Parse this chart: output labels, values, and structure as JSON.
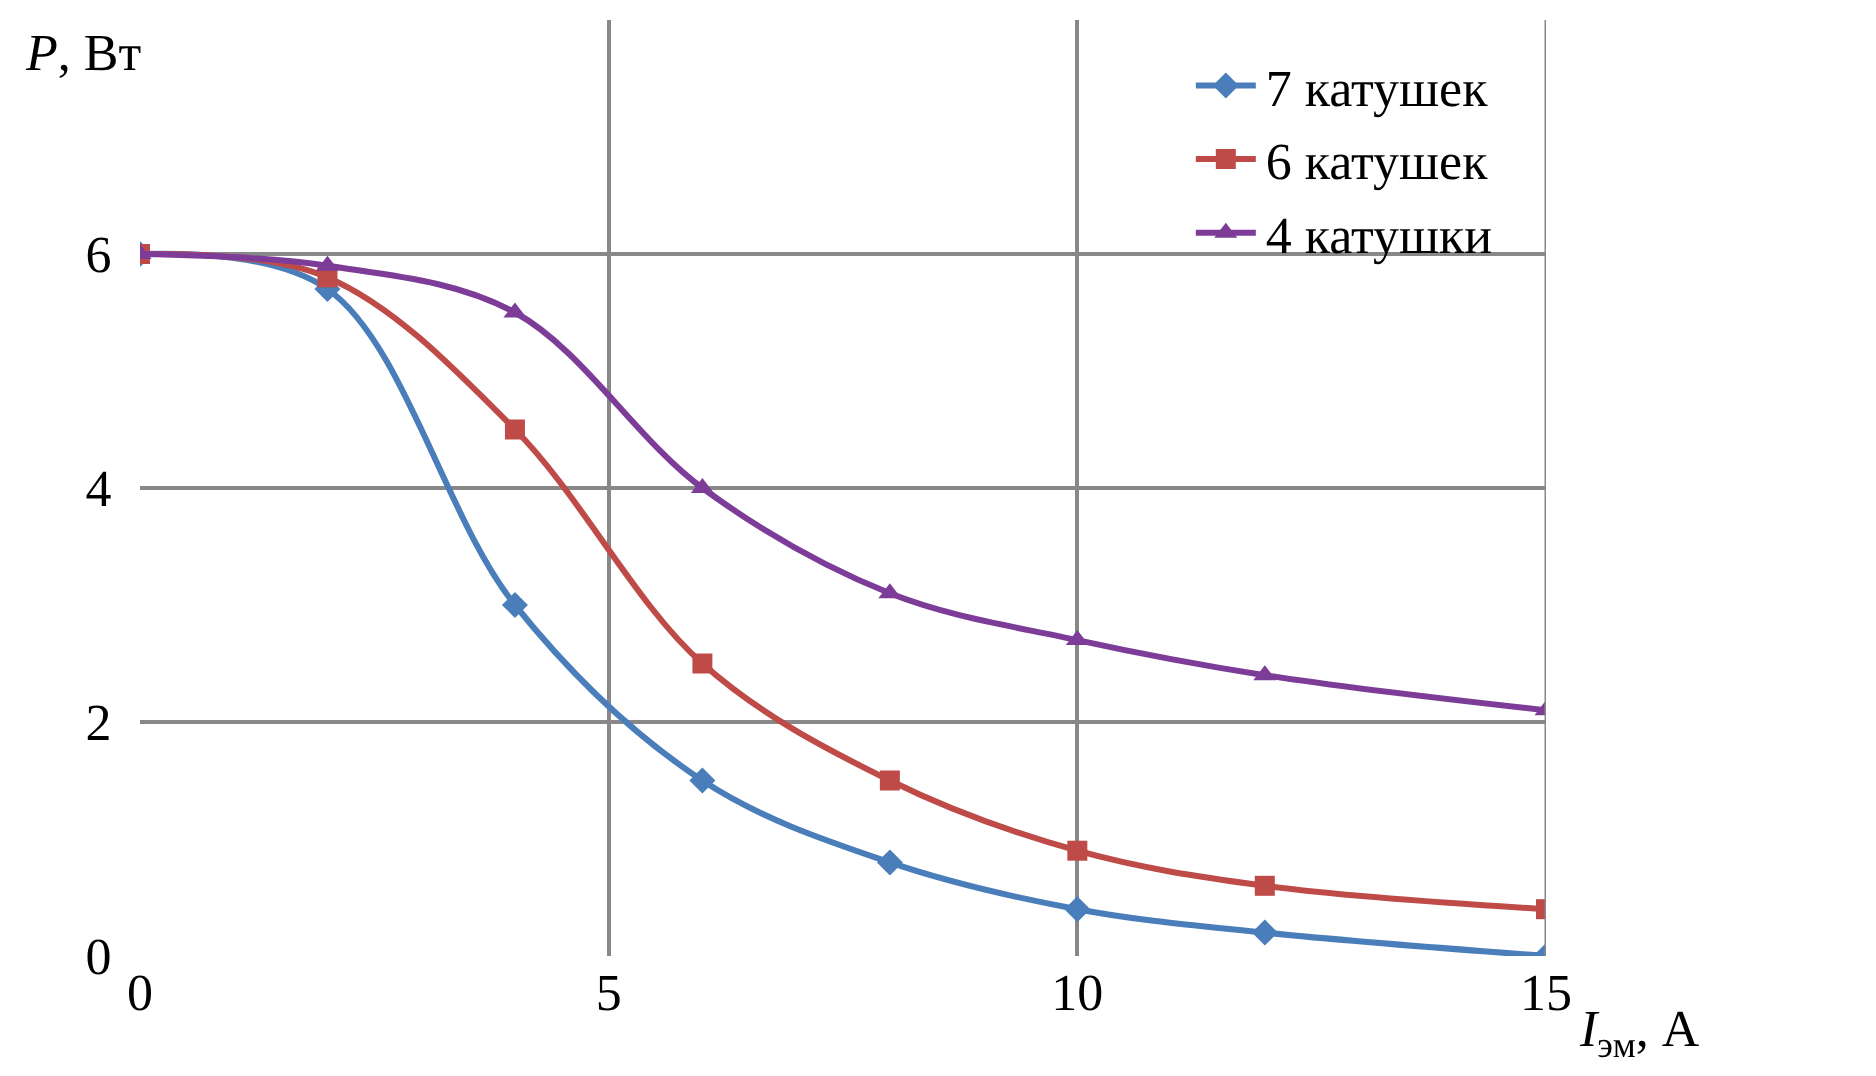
{
  "chart_data": {
    "type": "line",
    "xlabel": "I$_{эм}$, А",
    "ylabel": "P, Вт",
    "x": [
      0,
      2,
      4,
      6,
      8,
      10,
      12,
      15
    ],
    "series": [
      {
        "name": "7 катушек",
        "color": "#4a7ebb",
        "marker": "diamond",
        "values": [
          6,
          5.7,
          3.0,
          1.5,
          0.8,
          0.4,
          0.2,
          0
        ]
      },
      {
        "name": "6 катушек",
        "color": "#be4b48",
        "marker": "square",
        "values": [
          6,
          5.8,
          4.5,
          2.5,
          1.5,
          0.9,
          0.6,
          0.4
        ]
      },
      {
        "name": "4 катушки",
        "color": "#7d3c98",
        "marker": "triangle",
        "values": [
          6,
          5.9,
          5.5,
          4.0,
          3.1,
          2.7,
          2.4,
          2.1
        ]
      }
    ],
    "xlim": [
      0,
      15
    ],
    "xticks": [
      0,
      5,
      10,
      15
    ],
    "ylim": [
      0,
      8
    ],
    "yticks": [
      0,
      2,
      4,
      6
    ],
    "grid": true,
    "legend": "top right",
    "line_style": "solid"
  }
}
